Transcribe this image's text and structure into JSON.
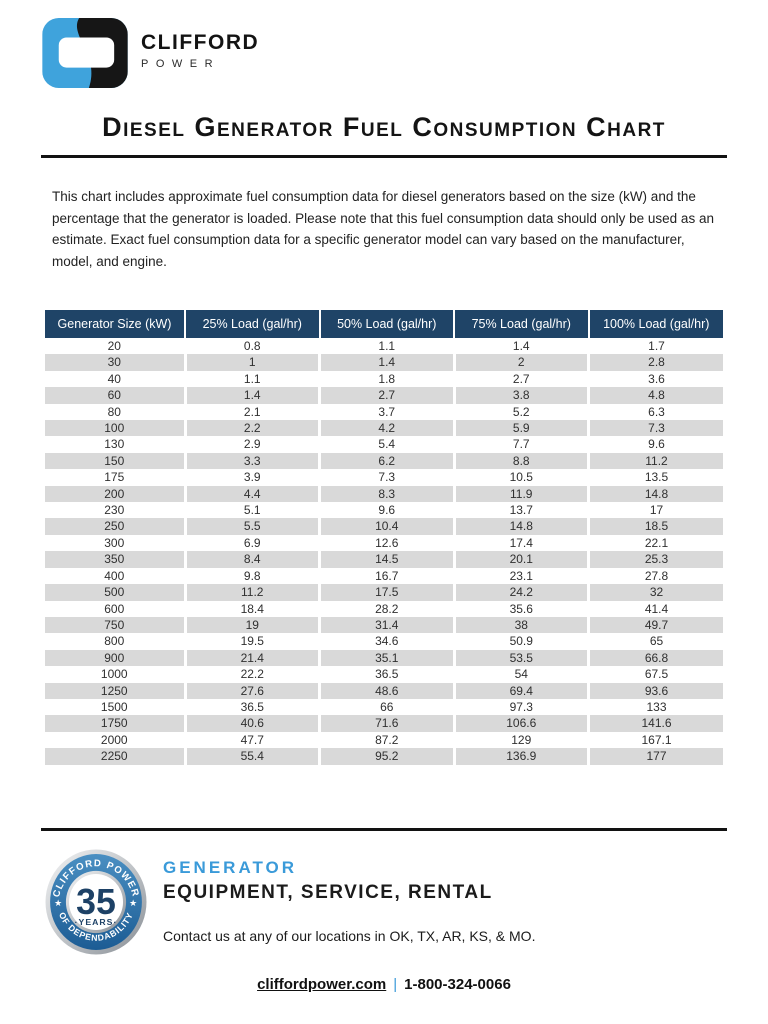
{
  "logo": {
    "name": "CLIFFORD",
    "sub": "POWER"
  },
  "title": "Diesel Generator Fuel Consumption Chart",
  "intro": "This chart includes approximate fuel consumption data for diesel generators based on the size (kW) and the percentage that the generator is loaded. Please note that this fuel consumption data should only be used as an estimate. Exact fuel consumption data for a specific generator model can vary based on the manufacturer, model, and engine.",
  "chart_data": {
    "type": "table",
    "title": "Diesel Generator Fuel Consumption Chart",
    "columns": [
      "Generator Size (kW)",
      "25% Load (gal/hr)",
      "50% Load (gal/hr)",
      "75% Load (gal/hr)",
      "100% Load (gal/hr)"
    ],
    "rows": [
      [
        20,
        0.8,
        1.1,
        1.4,
        1.7
      ],
      [
        30,
        1,
        1.4,
        2,
        2.8
      ],
      [
        40,
        1.1,
        1.8,
        2.7,
        3.6
      ],
      [
        60,
        1.4,
        2.7,
        3.8,
        4.8
      ],
      [
        80,
        2.1,
        3.7,
        5.2,
        6.3
      ],
      [
        100,
        2.2,
        4.2,
        5.9,
        7.3
      ],
      [
        130,
        2.9,
        5.4,
        7.7,
        9.6
      ],
      [
        150,
        3.3,
        6.2,
        8.8,
        11.2
      ],
      [
        175,
        3.9,
        7.3,
        10.5,
        13.5
      ],
      [
        200,
        4.4,
        8.3,
        11.9,
        14.8
      ],
      [
        230,
        5.1,
        9.6,
        13.7,
        17
      ],
      [
        250,
        5.5,
        10.4,
        14.8,
        18.5
      ],
      [
        300,
        6.9,
        12.6,
        17.4,
        22.1
      ],
      [
        350,
        8.4,
        14.5,
        20.1,
        25.3
      ],
      [
        400,
        9.8,
        16.7,
        23.1,
        27.8
      ],
      [
        500,
        11.2,
        17.5,
        24.2,
        32
      ],
      [
        600,
        18.4,
        28.2,
        35.6,
        41.4
      ],
      [
        750,
        19,
        31.4,
        38,
        49.7
      ],
      [
        800,
        19.5,
        34.6,
        50.9,
        65
      ],
      [
        900,
        21.4,
        35.1,
        53.5,
        66.8
      ],
      [
        1000,
        22.2,
        36.5,
        54,
        67.5
      ],
      [
        1250,
        27.6,
        48.6,
        69.4,
        93.6
      ],
      [
        1500,
        36.5,
        66,
        97.3,
        133
      ],
      [
        1750,
        40.6,
        71.6,
        106.6,
        141.6
      ],
      [
        2000,
        47.7,
        87.2,
        129,
        167.1
      ],
      [
        2250,
        55.4,
        95.2,
        136.9,
        177
      ]
    ]
  },
  "footer": {
    "badge": {
      "arc_top": "CLIFFORD POWER",
      "number": "35",
      "years": "·YEARS·",
      "arc_bottom": "OF DEPENDABILITY",
      "star": "★"
    },
    "heading_line1": "GENERATOR",
    "heading_line2": "EQUIPMENT, SERVICE, RENTAL",
    "contact": "Contact us at any of our locations in OK, TX, AR, KS, & MO.",
    "website": "cliffordpower.com",
    "divider": "|",
    "phone": "1-800-324-0066"
  },
  "colors": {
    "header_blue": "#1f4467",
    "stripe_gray": "#d9d9d9",
    "logo_blue": "#3fa3dc",
    "accent_blue": "#3a9ad9",
    "badge_navy": "#1d4166"
  }
}
